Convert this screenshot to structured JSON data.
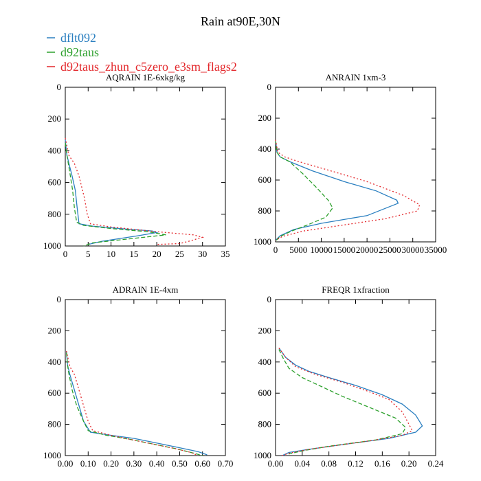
{
  "title": "Rain at90E,30N",
  "legend": [
    {
      "name": "dflt092",
      "color": "#2a7fc0",
      "dash": ""
    },
    {
      "name": "d92taus",
      "color": "#2ca02c",
      "dash": "6,3"
    },
    {
      "name": "d92taus_zhun_c5zero_e3sm_flags2",
      "color": "#e3262a",
      "dash": "2,3"
    }
  ],
  "chart_data": [
    {
      "type": "line",
      "title": "AQRAIN  1E-6xkg/kg",
      "xlim": [
        0,
        35
      ],
      "ylim": [
        0,
        1000
      ],
      "y_inverted": true,
      "xticks": [
        0,
        5,
        10,
        15,
        20,
        25,
        30,
        35
      ],
      "xtick_labels": [
        "0",
        "5",
        "10",
        "15",
        "20",
        "25",
        "30",
        "35"
      ],
      "yticks": [
        0,
        200,
        400,
        600,
        800,
        1000
      ],
      "ytick_labels": [
        "0",
        "200",
        "400",
        "600",
        "800",
        "1000"
      ],
      "series": [
        {
          "name": "dflt092",
          "points": [
            [
              0,
              330
            ],
            [
              0.3,
              420
            ],
            [
              0.8,
              480
            ],
            [
              1.5,
              560
            ],
            [
              2.2,
              650
            ],
            [
              2.6,
              760
            ],
            [
              3.0,
              860
            ],
            [
              6,
              875
            ],
            [
              12,
              890
            ],
            [
              19,
              905
            ],
            [
              20,
              915
            ],
            [
              16,
              935
            ],
            [
              8,
              970
            ],
            [
              5,
              990
            ]
          ]
        },
        {
          "name": "d92taus",
          "points": [
            [
              0,
              350
            ],
            [
              0.3,
              420
            ],
            [
              0.6,
              470
            ],
            [
              1.0,
              540
            ],
            [
              1.6,
              650
            ],
            [
              2.0,
              760
            ],
            [
              2.5,
              850
            ],
            [
              4,
              870
            ],
            [
              10,
              890
            ],
            [
              18,
              910
            ],
            [
              22,
              930
            ],
            [
              14,
              955
            ],
            [
              6,
              980
            ],
            [
              4,
              1000
            ]
          ]
        },
        {
          "name": "d92taus_zhun_c5zero_e3sm_flags2",
          "points": [
            [
              0,
              320
            ],
            [
              0.8,
              430
            ],
            [
              2,
              480
            ],
            [
              3,
              560
            ],
            [
              4.2,
              700
            ],
            [
              4.8,
              800
            ],
            [
              5.5,
              860
            ],
            [
              10,
              880
            ],
            [
              20,
              910
            ],
            [
              28,
              930
            ],
            [
              30,
              945
            ],
            [
              27,
              970
            ],
            [
              25,
              985
            ],
            [
              20,
              990
            ]
          ]
        }
      ]
    },
    {
      "type": "line",
      "title": "ANRAIN  1xm-3",
      "xlim": [
        0,
        35000
      ],
      "ylim": [
        0,
        1000
      ],
      "y_inverted": true,
      "xticks": [
        0,
        5000,
        10000,
        15000,
        20000,
        25000,
        30000,
        35000
      ],
      "xtick_labels": [
        "0",
        "5000",
        "10000",
        "15000",
        "20000",
        "25000",
        "30000",
        "35000"
      ],
      "yticks": [
        0,
        200,
        400,
        600,
        800,
        1000
      ],
      "ytick_labels": [
        "0",
        "200",
        "400",
        "600",
        "800",
        "1000"
      ],
      "series": [
        {
          "name": "dflt092",
          "points": [
            [
              0,
              340
            ],
            [
              300,
              420
            ],
            [
              1000,
              450
            ],
            [
              3000,
              480
            ],
            [
              8000,
              540
            ],
            [
              15000,
              610
            ],
            [
              22000,
              670
            ],
            [
              26500,
              730
            ],
            [
              26800,
              750
            ],
            [
              20000,
              830
            ],
            [
              10000,
              880
            ],
            [
              4000,
              920
            ],
            [
              1000,
              960
            ],
            [
              0,
              990
            ]
          ]
        },
        {
          "name": "d92taus",
          "points": [
            [
              0,
              340
            ],
            [
              300,
              420
            ],
            [
              1000,
              450
            ],
            [
              3000,
              480
            ],
            [
              6000,
              560
            ],
            [
              9000,
              650
            ],
            [
              11500,
              730
            ],
            [
              12500,
              780
            ],
            [
              11000,
              840
            ],
            [
              7000,
              890
            ],
            [
              3500,
              930
            ],
            [
              1000,
              965
            ],
            [
              0,
              995
            ]
          ]
        },
        {
          "name": "d92taus_zhun_c5zero_e3sm_flags2",
          "points": [
            [
              0,
              340
            ],
            [
              500,
              420
            ],
            [
              2000,
              450
            ],
            [
              5000,
              480
            ],
            [
              12000,
              540
            ],
            [
              20000,
              610
            ],
            [
              28000,
              700
            ],
            [
              31500,
              760
            ],
            [
              31000,
              800
            ],
            [
              24000,
              850
            ],
            [
              15000,
              890
            ],
            [
              6000,
              930
            ],
            [
              1500,
              965
            ],
            [
              0,
              990
            ]
          ]
        }
      ]
    },
    {
      "type": "line",
      "title": "ADRAIN  1E-4xm",
      "xlim": [
        0,
        0.7
      ],
      "ylim": [
        0,
        1000
      ],
      "y_inverted": true,
      "xticks": [
        0,
        0.1,
        0.2,
        0.3,
        0.4,
        0.5,
        0.6,
        0.7
      ],
      "xtick_labels": [
        "0.00",
        "0.10",
        "0.20",
        "0.30",
        "0.40",
        "0.50",
        "0.60",
        "0.70"
      ],
      "yticks": [
        0,
        200,
        400,
        600,
        800,
        1000
      ],
      "ytick_labels": [
        "0",
        "200",
        "400",
        "600",
        "800",
        "1000"
      ],
      "series": [
        {
          "name": "dflt092",
          "points": [
            [
              0.005,
              330
            ],
            [
              0.01,
              420
            ],
            [
              0.02,
              480
            ],
            [
              0.04,
              580
            ],
            [
              0.06,
              680
            ],
            [
              0.08,
              780
            ],
            [
              0.11,
              850
            ],
            [
              0.2,
              870
            ],
            [
              0.3,
              890
            ],
            [
              0.4,
              920
            ],
            [
              0.5,
              950
            ],
            [
              0.58,
              975
            ],
            [
              0.62,
              995
            ]
          ]
        },
        {
          "name": "d92taus",
          "points": [
            [
              0.005,
              340
            ],
            [
              0.01,
              420
            ],
            [
              0.015,
              470
            ],
            [
              0.03,
              580
            ],
            [
              0.05,
              680
            ],
            [
              0.08,
              780
            ],
            [
              0.1,
              840
            ],
            [
              0.18,
              870
            ],
            [
              0.28,
              895
            ],
            [
              0.38,
              925
            ],
            [
              0.48,
              955
            ],
            [
              0.55,
              980
            ],
            [
              0.6,
              1000
            ]
          ]
        },
        {
          "name": "d92taus_zhun_c5zero_e3sm_flags2",
          "points": [
            [
              0.005,
              330
            ],
            [
              0.02,
              430
            ],
            [
              0.04,
              480
            ],
            [
              0.06,
              580
            ],
            [
              0.08,
              680
            ],
            [
              0.1,
              780
            ],
            [
              0.12,
              840
            ],
            [
              0.2,
              870
            ],
            [
              0.28,
              895
            ],
            [
              0.38,
              925
            ],
            [
              0.48,
              955
            ],
            [
              0.55,
              980
            ],
            [
              0.58,
              1000
            ]
          ]
        }
      ]
    },
    {
      "type": "line",
      "title": "FREQR  1xfraction",
      "xlim": [
        0,
        0.24
      ],
      "ylim": [
        0,
        1000
      ],
      "y_inverted": true,
      "xticks": [
        0,
        0.04,
        0.08,
        0.12,
        0.16,
        0.2,
        0.24
      ],
      "xtick_labels": [
        "0.00",
        "0.04",
        "0.08",
        "0.12",
        "0.16",
        "0.20",
        "0.24"
      ],
      "yticks": [
        0,
        200,
        400,
        600,
        800,
        1000
      ],
      "ytick_labels": [
        "0",
        "200",
        "400",
        "600",
        "800",
        "1000"
      ],
      "series": [
        {
          "name": "dflt092",
          "points": [
            [
              0.005,
              310
            ],
            [
              0.015,
              370
            ],
            [
              0.03,
              420
            ],
            [
              0.05,
              460
            ],
            [
              0.08,
              500
            ],
            [
              0.12,
              550
            ],
            [
              0.16,
              610
            ],
            [
              0.19,
              670
            ],
            [
              0.21,
              740
            ],
            [
              0.22,
              810
            ],
            [
              0.21,
              850
            ],
            [
              0.17,
              890
            ],
            [
              0.1,
              930
            ],
            [
              0.05,
              960
            ],
            [
              0.02,
              980
            ],
            [
              0.01,
              1000
            ]
          ]
        },
        {
          "name": "d92taus",
          "points": [
            [
              0.005,
              320
            ],
            [
              0.012,
              380
            ],
            [
              0.02,
              440
            ],
            [
              0.04,
              500
            ],
            [
              0.07,
              560
            ],
            [
              0.1,
              620
            ],
            [
              0.14,
              690
            ],
            [
              0.18,
              760
            ],
            [
              0.195,
              820
            ],
            [
              0.19,
              860
            ],
            [
              0.15,
              900
            ],
            [
              0.08,
              940
            ],
            [
              0.04,
              970
            ],
            [
              0.02,
              990
            ]
          ]
        },
        {
          "name": "d92taus_zhun_c5zero_e3sm_flags2",
          "points": [
            [
              0.005,
              310
            ],
            [
              0.015,
              370
            ],
            [
              0.03,
              430
            ],
            [
              0.06,
              480
            ],
            [
              0.1,
              530
            ],
            [
              0.14,
              590
            ],
            [
              0.17,
              640
            ],
            [
              0.19,
              720
            ],
            [
              0.2,
              800
            ],
            [
              0.205,
              840
            ],
            [
              0.19,
              870
            ],
            [
              0.15,
              900
            ],
            [
              0.1,
              930
            ],
            [
              0.05,
              960
            ],
            [
              0.02,
              985
            ],
            [
              0.01,
              1000
            ]
          ]
        }
      ]
    }
  ]
}
